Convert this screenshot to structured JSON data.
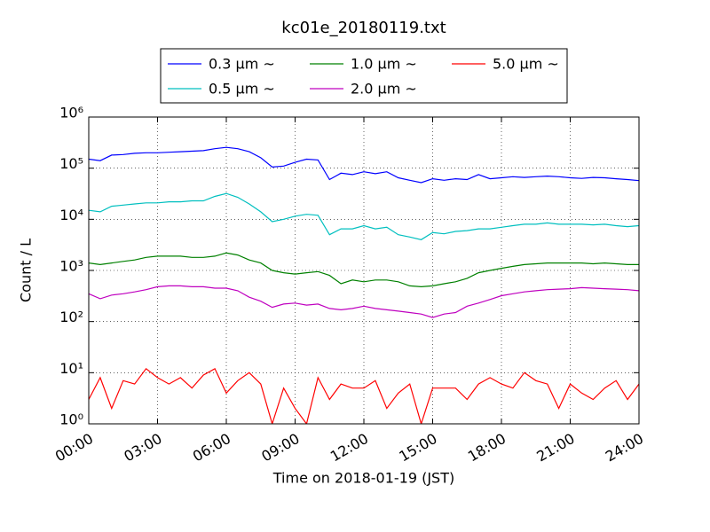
{
  "chart_data": {
    "type": "line",
    "title": "kc01e_20180119.txt",
    "xlabel": "Time on 2018-01-19 (JST)",
    "ylabel": "Count / L",
    "log_y": true,
    "grid": true,
    "legend": "upper center",
    "x": [
      0,
      0.5,
      1,
      1.5,
      2,
      2.5,
      3,
      3.5,
      4,
      4.5,
      5,
      5.5,
      6,
      6.5,
      7,
      7.5,
      8,
      8.5,
      9,
      9.5,
      10,
      10.5,
      11,
      11.5,
      12,
      12.5,
      13,
      13.5,
      14,
      14.5,
      15,
      15.5,
      16,
      16.5,
      17,
      17.5,
      18,
      18.5,
      19,
      19.5,
      20,
      20.5,
      21,
      21.5,
      22,
      22.5,
      23,
      23.5,
      24
    ],
    "xlim": [
      0,
      24
    ],
    "xticks": [
      {
        "value": 0,
        "label": "00:00"
      },
      {
        "value": 3,
        "label": "03:00"
      },
      {
        "value": 6,
        "label": "06:00"
      },
      {
        "value": 9,
        "label": "09:00"
      },
      {
        "value": 12,
        "label": "12:00"
      },
      {
        "value": 15,
        "label": "15:00"
      },
      {
        "value": 18,
        "label": "18:00"
      },
      {
        "value": 21,
        "label": "21:00"
      },
      {
        "value": 24,
        "label": "24:00"
      }
    ],
    "ylim": [
      1,
      1000000
    ],
    "yticks": [
      {
        "value": 1,
        "label": "10⁰"
      },
      {
        "value": 10,
        "label": "10¹"
      },
      {
        "value": 100,
        "label": "10²"
      },
      {
        "value": 1000,
        "label": "10³"
      },
      {
        "value": 10000,
        "label": "10⁴"
      },
      {
        "value": 100000,
        "label": "10⁵"
      },
      {
        "value": 1000000,
        "label": "10⁶"
      }
    ],
    "series": [
      {
        "name": "0.3 μm ~",
        "color": "#0000ff",
        "values": [
          150000,
          140000,
          180000,
          185000,
          195000,
          200000,
          200000,
          205000,
          210000,
          215000,
          220000,
          240000,
          255000,
          240000,
          210000,
          160000,
          105000,
          110000,
          130000,
          150000,
          145000,
          60000,
          80000,
          75000,
          85000,
          78000,
          85000,
          65000,
          58000,
          52000,
          62000,
          58000,
          62000,
          60000,
          75000,
          62000,
          65000,
          68000,
          66000,
          68000,
          70000,
          68000,
          65000,
          63000,
          66000,
          65000,
          62000,
          60000,
          57000
        ]
      },
      {
        "name": "0.5 μm ~",
        "color": "#00bfbf",
        "values": [
          15000,
          14000,
          18000,
          19000,
          20000,
          21000,
          21000,
          22000,
          22000,
          23000,
          23000,
          28000,
          32000,
          27000,
          20000,
          14000,
          9000,
          10000,
          11500,
          12500,
          12000,
          5000,
          6500,
          6500,
          7500,
          6500,
          7000,
          5000,
          4500,
          4000,
          5500,
          5200,
          5800,
          6000,
          6500,
          6500,
          7000,
          7500,
          8000,
          8000,
          8500,
          8000,
          8000,
          8000,
          7800,
          8000,
          7500,
          7200,
          7500
        ]
      },
      {
        "name": "1.0 μm ~",
        "color": "#008000",
        "values": [
          1400,
          1300,
          1400,
          1500,
          1600,
          1800,
          1900,
          1900,
          1900,
          1800,
          1800,
          1900,
          2200,
          2000,
          1600,
          1400,
          1000,
          900,
          850,
          900,
          950,
          800,
          550,
          650,
          600,
          650,
          650,
          600,
          500,
          480,
          500,
          550,
          600,
          700,
          900,
          1000,
          1100,
          1200,
          1300,
          1350,
          1400,
          1400,
          1400,
          1400,
          1350,
          1400,
          1350,
          1300,
          1300
        ]
      },
      {
        "name": "2.0 μm ~",
        "color": "#bf00bf",
        "values": [
          350,
          280,
          330,
          350,
          380,
          420,
          480,
          500,
          500,
          480,
          480,
          450,
          450,
          400,
          300,
          250,
          190,
          220,
          230,
          210,
          220,
          180,
          170,
          180,
          200,
          180,
          170,
          160,
          150,
          140,
          120,
          140,
          150,
          200,
          230,
          270,
          320,
          350,
          380,
          400,
          420,
          430,
          440,
          460,
          450,
          440,
          430,
          420,
          400
        ]
      },
      {
        "name": "5.0 μm ~",
        "color": "#ff0000",
        "values": [
          3,
          8,
          2,
          7,
          6,
          12,
          8,
          6,
          8,
          5,
          9,
          12,
          4,
          7,
          10,
          6,
          1,
          5,
          2,
          1,
          8,
          3,
          6,
          5,
          5,
          7,
          2,
          4,
          6,
          1,
          5,
          5,
          5,
          3,
          6,
          8,
          6,
          5,
          10,
          7,
          6,
          2,
          6,
          4,
          3,
          5,
          7,
          3,
          6
        ]
      }
    ]
  }
}
